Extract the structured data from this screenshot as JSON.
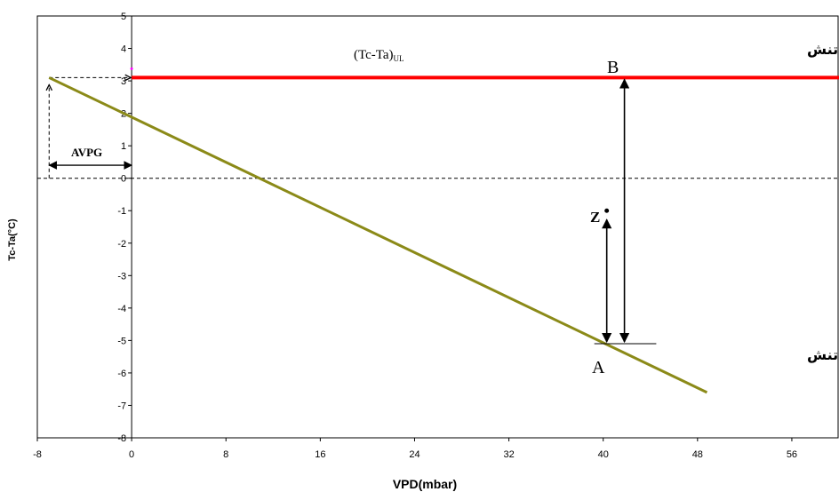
{
  "chart_data": {
    "type": "line",
    "xlabel": "VPD(mbar)",
    "ylabel": "Tc-Ta(°C)",
    "xlim": [
      -8,
      60
    ],
    "ylim": [
      -8,
      5
    ],
    "xticks": [
      -8,
      0,
      8,
      16,
      24,
      32,
      40,
      48,
      56
    ],
    "yticks": [
      5,
      4,
      3,
      2,
      1,
      0,
      -1,
      -2,
      -3,
      -4,
      -5,
      -6,
      -7,
      -8
    ],
    "grid": false,
    "series": [
      {
        "color": "#8b8a18",
        "x": [
          -7,
          48.8
        ],
        "y": [
          3.1,
          -6.6
        ]
      },
      {
        "color": "#ff0000",
        "x": [
          0,
          60
        ],
        "y": [
          3.1,
          3.1
        ]
      }
    ],
    "annotations": {
      "upper_limit_label": "(Tc-Ta)",
      "upper_limit_subscript": "UL",
      "max_stress_label": "خط حداکثر تنش",
      "min_stress_label": "خط حداقل تنش",
      "point_a": "A",
      "point_b": "B",
      "point_z": "Z",
      "avpg": "AVPG"
    },
    "reference_points": {
      "z": {
        "x": 40.3,
        "y": -1.0
      },
      "a_level": -5.1,
      "zero_line": 0,
      "avpg_from": -7,
      "avpg_to": 0,
      "arrow_a_x": 40.3,
      "arrow_b_x": 41.8
    }
  }
}
